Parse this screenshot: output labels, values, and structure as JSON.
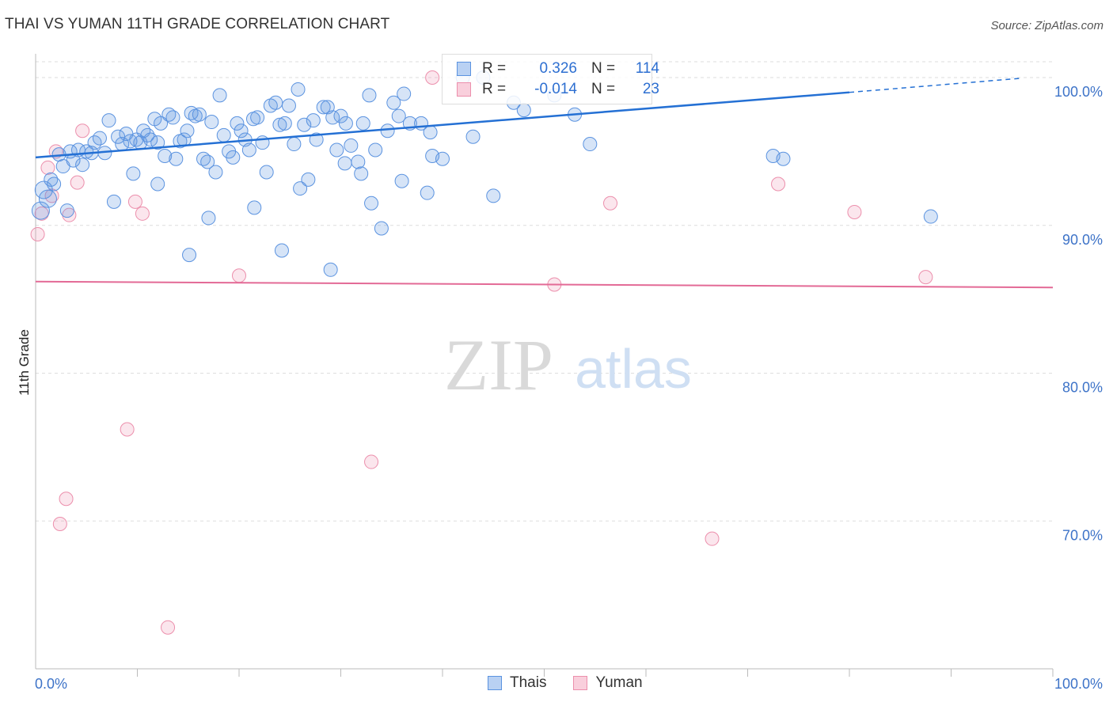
{
  "header": {
    "title": "THAI VS YUMAN 11TH GRADE CORRELATION CHART",
    "source": "Source: ZipAtlas.com"
  },
  "colors": {
    "thais": "#5b93e0",
    "thais_line": "#2470d4",
    "yuman": "#ec8fac",
    "yuman_line": "#e36a96",
    "tick_text": "#3d73c8"
  },
  "legend": {
    "rows": [
      {
        "r_label": "R =",
        "r_value": "0.326",
        "n_label": "N =",
        "n_value": "114"
      },
      {
        "r_label": "R =",
        "r_value": "-0.014",
        "n_label": "N =",
        "n_value": "23"
      }
    ],
    "bottom": [
      "Thais",
      "Yuman"
    ]
  },
  "watermark": {
    "part1": "ZIP",
    "part2": "atlas"
  },
  "chart_data": {
    "type": "scatter",
    "title": "THAI VS YUMAN 11TH GRADE CORRELATION CHART",
    "xlabel": "",
    "ylabel": "11th Grade",
    "xlim": [
      0,
      100
    ],
    "ylim": [
      60,
      101.5
    ],
    "x_tick_labels": [
      "0.0%",
      "100.0%"
    ],
    "y_ticks": [
      70,
      80,
      90,
      100
    ],
    "y_tick_labels": [
      "70.0%",
      "80.0%",
      "90.0%",
      "100.0%"
    ],
    "grid": "horizontal dashed",
    "legend_position": "top-center",
    "series": [
      {
        "name": "Thais",
        "r": 0.326,
        "n": 114,
        "trend": {
          "x0": 0,
          "y0": 94.6,
          "x1": 80,
          "y1": 99.0,
          "dashed_to_x": 97,
          "dashed_to_y": 99.96
        },
        "points": [
          [
            0.5,
            91.0
          ],
          [
            0.8,
            92.4
          ],
          [
            1.2,
            91.8
          ],
          [
            1.5,
            93.1
          ],
          [
            1.8,
            92.8
          ],
          [
            2.3,
            94.8
          ],
          [
            2.7,
            94.0
          ],
          [
            3.1,
            91.0
          ],
          [
            3.4,
            95.0
          ],
          [
            3.7,
            94.4
          ],
          [
            4.2,
            95.1
          ],
          [
            4.6,
            94.1
          ],
          [
            5.0,
            95.0
          ],
          [
            5.5,
            94.9
          ],
          [
            5.8,
            95.6
          ],
          [
            6.3,
            95.9
          ],
          [
            6.8,
            94.9
          ],
          [
            7.2,
            97.1
          ],
          [
            7.7,
            91.6
          ],
          [
            8.1,
            96.0
          ],
          [
            8.5,
            95.5
          ],
          [
            8.9,
            96.2
          ],
          [
            9.3,
            95.7
          ],
          [
            9.6,
            93.5
          ],
          [
            9.9,
            95.8
          ],
          [
            10.3,
            95.6
          ],
          [
            10.6,
            96.4
          ],
          [
            11.0,
            96.1
          ],
          [
            11.3,
            95.8
          ],
          [
            11.7,
            97.2
          ],
          [
            12.0,
            95.6
          ],
          [
            12.3,
            96.9
          ],
          [
            12.7,
            94.7
          ],
          [
            13.1,
            97.5
          ],
          [
            13.5,
            97.3
          ],
          [
            13.8,
            94.5
          ],
          [
            14.2,
            95.7
          ],
          [
            14.6,
            95.8
          ],
          [
            14.9,
            96.4
          ],
          [
            15.3,
            97.6
          ],
          [
            15.7,
            97.4
          ],
          [
            16.1,
            97.5
          ],
          [
            16.5,
            94.5
          ],
          [
            16.9,
            94.3
          ],
          [
            17.3,
            97.0
          ],
          [
            17.7,
            93.6
          ],
          [
            18.1,
            98.8
          ],
          [
            18.5,
            96.1
          ],
          [
            19.0,
            95.0
          ],
          [
            19.4,
            94.6
          ],
          [
            19.8,
            96.9
          ],
          [
            20.2,
            96.4
          ],
          [
            20.6,
            95.8
          ],
          [
            21.0,
            95.1
          ],
          [
            21.4,
            97.2
          ],
          [
            21.8,
            97.3
          ],
          [
            22.3,
            95.6
          ],
          [
            22.7,
            93.6
          ],
          [
            23.1,
            98.1
          ],
          [
            23.6,
            98.3
          ],
          [
            24.0,
            96.8
          ],
          [
            24.5,
            96.9
          ],
          [
            24.9,
            98.1
          ],
          [
            25.4,
            95.5
          ],
          [
            25.8,
            99.2
          ],
          [
            26.4,
            96.8
          ],
          [
            26.8,
            93.1
          ],
          [
            27.3,
            97.1
          ],
          [
            27.6,
            95.8
          ],
          [
            28.3,
            98.0
          ],
          [
            28.7,
            98.0
          ],
          [
            29.2,
            97.3
          ],
          [
            29.6,
            95.1
          ],
          [
            30.0,
            97.4
          ],
          [
            30.5,
            96.9
          ],
          [
            31.0,
            95.4
          ],
          [
            31.7,
            94.3
          ],
          [
            32.2,
            96.9
          ],
          [
            32.8,
            98.8
          ],
          [
            33.4,
            95.1
          ],
          [
            34.0,
            89.8
          ],
          [
            34.6,
            96.4
          ],
          [
            35.2,
            98.3
          ],
          [
            35.7,
            97.4
          ],
          [
            36.2,
            98.9
          ],
          [
            36.8,
            96.9
          ],
          [
            37.9,
            96.9
          ],
          [
            38.8,
            96.3
          ],
          [
            39.0,
            94.7
          ],
          [
            42.0,
            100.0
          ],
          [
            44.0,
            100.0
          ],
          [
            47.0,
            98.3
          ],
          [
            48.0,
            97.8
          ],
          [
            51.0,
            98.8
          ],
          [
            53.0,
            97.5
          ],
          [
            54.5,
            95.5
          ],
          [
            72.5,
            94.7
          ],
          [
            73.5,
            94.5
          ],
          [
            88.0,
            90.6
          ],
          [
            15.1,
            88.0
          ],
          [
            24.2,
            88.3
          ],
          [
            29.0,
            87.0
          ],
          [
            32.0,
            93.5
          ],
          [
            36.0,
            93.0
          ],
          [
            40.0,
            94.5
          ],
          [
            45.0,
            92.0
          ],
          [
            26.0,
            92.5
          ],
          [
            33.0,
            91.5
          ],
          [
            21.5,
            91.2
          ],
          [
            17.0,
            90.5
          ],
          [
            38.5,
            92.2
          ],
          [
            43.0,
            96.0
          ],
          [
            12.0,
            92.8
          ],
          [
            30.4,
            94.2
          ]
        ]
      },
      {
        "name": "Yuman",
        "r": -0.014,
        "n": 23,
        "trend": {
          "x0": 0,
          "y0": 86.2,
          "x1": 100,
          "y1": 85.8
        },
        "points": [
          [
            0.2,
            89.4
          ],
          [
            0.6,
            90.8
          ],
          [
            1.2,
            93.9
          ],
          [
            1.6,
            92.0
          ],
          [
            2.0,
            95.0
          ],
          [
            2.4,
            69.8
          ],
          [
            3.0,
            71.5
          ],
          [
            3.3,
            90.7
          ],
          [
            4.1,
            92.9
          ],
          [
            4.6,
            96.4
          ],
          [
            9.0,
            76.2
          ],
          [
            9.8,
            91.6
          ],
          [
            10.5,
            90.8
          ],
          [
            13.0,
            62.8
          ],
          [
            20.0,
            86.6
          ],
          [
            33.0,
            74.0
          ],
          [
            39.0,
            100.0
          ],
          [
            51.0,
            86.0
          ],
          [
            56.5,
            91.5
          ],
          [
            66.5,
            68.8
          ],
          [
            73.0,
            92.8
          ],
          [
            80.5,
            90.9
          ],
          [
            87.5,
            86.5
          ]
        ]
      }
    ]
  }
}
